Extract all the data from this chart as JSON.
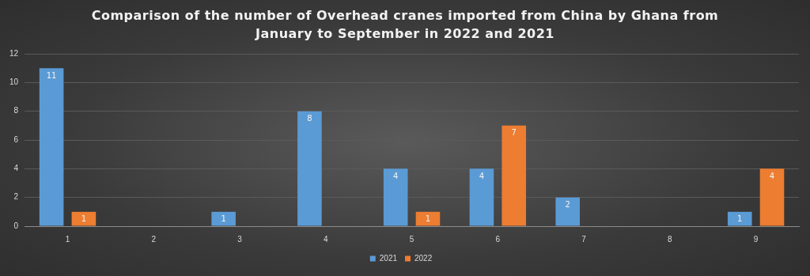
{
  "chart_data": {
    "type": "bar",
    "title": "Comparison of the number of Overhead cranes imported from China by Ghana from January to September in 2022 and 2021",
    "categories": [
      "1",
      "2",
      "3",
      "4",
      "5",
      "6",
      "7",
      "8",
      "9"
    ],
    "series": [
      {
        "name": "2021",
        "color": "#5b9bd5",
        "values": [
          11,
          null,
          1,
          8,
          4,
          4,
          2,
          null,
          1
        ]
      },
      {
        "name": "2022",
        "color": "#ed7d31",
        "values": [
          1,
          null,
          null,
          null,
          1,
          7,
          null,
          null,
          4
        ]
      }
    ],
    "ylim": [
      0,
      12
    ],
    "yticks": [
      0,
      2,
      4,
      6,
      8,
      10,
      12
    ],
    "grid": "y",
    "legend": "bottom",
    "data_labels": true
  }
}
